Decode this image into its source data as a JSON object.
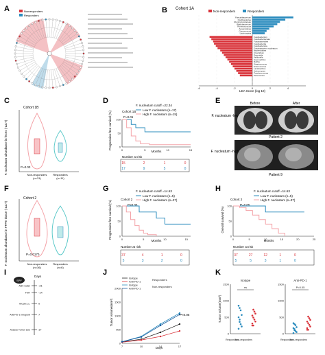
{
  "colors": {
    "red": "#d9333a",
    "blue": "#2b8cbe",
    "pink": "#f4a3a8",
    "teal": "#5cc9c9",
    "dark": "#222222",
    "grey": "#9a9a9a"
  },
  "panelA": {
    "letter": "A",
    "legend": [
      "Nonresponders",
      "Responders"
    ]
  },
  "panelB": {
    "letter": "B",
    "title": "Cohort 1A",
    "legend": [
      "Non-responders",
      "Responders"
    ],
    "xlabel": "LDA Score (log 10)",
    "ticks": [
      "-6",
      "-4",
      "-2",
      "0",
      "2",
      "4"
    ],
    "positive": [
      "Faecalibacterium",
      "Oscillospirales",
      "Ruminococcaceae",
      "Bifidobacterium",
      "Ruminococcus",
      "Anaerostipes",
      "Coprococcus",
      "Lachnospira"
    ],
    "positive_values": [
      4.6,
      3.7,
      3.1,
      2.8,
      2.4,
      1.9,
      1.6,
      1.4
    ],
    "negative": [
      "Fusobacterium",
      "Fusobacteriaceae",
      "Fusobacteriales",
      "Fusobacteriia",
      "Fusobacteriota",
      "Fusobacterium nucleatum",
      "Bacteroidales",
      "Clostridium",
      "Prevotella",
      "Veillonella",
      "Haemophilus",
      "Rothia",
      "Streptococcus",
      "Enterococcus",
      "Lactobacillus",
      "Actinomyces",
      "Porphyromonas",
      "Parvimonas"
    ],
    "negative_values": [
      -4.8,
      -4.6,
      -4.4,
      -4.3,
      -4.1,
      -3.9,
      -3.6,
      -3.4,
      -3.2,
      -3.0,
      -2.8,
      -2.6,
      -2.4,
      -2.2,
      -2.0,
      -1.8,
      -1.6,
      -1.4
    ]
  },
  "panelC": {
    "letter": "C",
    "cohort": "Cohort 1B",
    "ylabel": "F. nucleatum abundance in feces (-ΔCT)",
    "pvalue": "P=0.03",
    "groups": [
      "Non-responders",
      "Responders"
    ],
    "ns": [
      "(n=31)",
      "(n=11)"
    ]
  },
  "panelD": {
    "letter": "D",
    "cohort": "Cohort 1B",
    "cutoff": "F. nucleatum cutoff =22.34",
    "legend": [
      "Low F. nucleatum (n=17)",
      "High F. nucleatum (n=15)"
    ],
    "pvalue": "P=0.01",
    "ylabel": "Progression-free survival (%)",
    "xlabel": "Months",
    "xticks": [
      "0",
      "5",
      "10",
      "15"
    ],
    "risk_title": "Number at risk",
    "risk_rows": [
      [
        "15",
        "2",
        "1",
        "0"
      ],
      [
        "17",
        "9",
        "5",
        "0"
      ]
    ]
  },
  "panelE": {
    "letter": "E",
    "before": "Before",
    "after": "After",
    "low_label": "F. nucleatum -low",
    "high_label": "F. nucleatum -high",
    "patient1": "Patient 2",
    "patient2": "Patient 9"
  },
  "panelF": {
    "letter": "F",
    "cohort": "Cohort 2",
    "ylabel": "F. nucleatum abundance in FFPE tissue (-ΔCT)",
    "pvalue": "P=0.0170",
    "groups": [
      "Non-responders",
      "Responders"
    ],
    "ns": [
      "(n=36)",
      "(n=6)"
    ]
  },
  "panelG": {
    "letter": "G",
    "cohort": "Cohort 2",
    "cutoff": "F. nucleatum cutoff =14.63",
    "legend": [
      "Low F. nucleatum (n=5)",
      "High F. nucleatum (n=37)"
    ],
    "pvalue": "P<0.05",
    "ylabel": "Progression-free survival (%)",
    "xlabel": "Months",
    "xticks": [
      "0",
      "5",
      "10",
      "15"
    ],
    "risk_title": "Number at risk",
    "risk_rows": [
      [
        "37",
        "4",
        "1",
        "0"
      ],
      [
        "5",
        "3",
        "2",
        "0"
      ]
    ]
  },
  "panelH": {
    "letter": "H",
    "cohort": "Cohort 2",
    "cutoff": "F. nucleatum cutoff =14.63",
    "legend": [
      "Low F. nucleatum (n=5)",
      "High F. nucleatum (n=37)"
    ],
    "pvalue": "P=0.05",
    "ylabel": "Overall survival (%)",
    "xlabel": "Months",
    "xticks": [
      "0",
      "5",
      "10",
      "15",
      "20",
      "25"
    ],
    "risk_title": "Number at risk",
    "risk_rows": [
      [
        "37",
        "27",
        "12",
        "1",
        "0"
      ],
      [
        "5",
        "5",
        "3",
        "1",
        "0"
      ]
    ]
  },
  "panelI": {
    "letter": "I",
    "mouse": "SPF",
    "days_label": "Days",
    "steps": [
      "ABX water",
      "FMT",
      "MC38 s.c.",
      "Anti-PD-1 intraperitoneal injection (100mg) twice/week",
      "Assess Tumor size"
    ],
    "days": [
      "-21",
      "-14",
      "0",
      "7",
      "17"
    ]
  },
  "panelJ": {
    "letter": "J",
    "legend": [
      "Isotype",
      "Anti-PD-1",
      "Isotype",
      "Anti-PD-1"
    ],
    "group_labels": [
      "Responders",
      "Non-responders"
    ],
    "ylabel": "Tumor volume(mm³)",
    "xlabel": "Days",
    "xticks": [
      "7",
      "10",
      "14",
      "17"
    ],
    "yticks": [
      "0",
      "500",
      "1000",
      "1500",
      "2000"
    ],
    "pvalue": "P<0.05"
  },
  "panelK": {
    "letter": "K",
    "titles": [
      "Isotype",
      "Anti-PD-1"
    ],
    "ylabel": "Tumor volume(mm³)",
    "yticks1": [
      "0",
      "500",
      "1000",
      "1500"
    ],
    "yticks2": [
      "0",
      "500",
      "1000",
      "1500"
    ],
    "sig": [
      "ns",
      "P<0.05"
    ],
    "groups": [
      "Responders",
      "Non-responders"
    ]
  },
  "chart_data": [
    {
      "type": "bar",
      "panel": "B",
      "title": "Cohort 1A",
      "xlabel": "LDA Score (log 10)",
      "series": [
        {
          "name": "Responders",
          "values": [
            4.6,
            3.7,
            3.1,
            2.8,
            2.4,
            1.9,
            1.6,
            1.4
          ]
        },
        {
          "name": "Non-responders",
          "values": [
            -4.8,
            -4.6,
            -4.4,
            -4.3,
            -4.1,
            -3.9,
            -3.6,
            -3.4,
            -3.2,
            -3.0,
            -2.8,
            -2.6,
            -2.4,
            -2.2,
            -2.0,
            -1.8,
            -1.6,
            -1.4
          ]
        }
      ]
    },
    {
      "type": "line",
      "panel": "D",
      "series": [
        {
          "name": "Low F. nucleatum (n=17)",
          "x": [
            0,
            2,
            3,
            5,
            8,
            10,
            15
          ],
          "y": [
            100,
            82,
            70,
            55,
            55,
            55,
            55
          ]
        },
        {
          "name": "High F. nucleatum (n=15)",
          "x": [
            0,
            1,
            2,
            3,
            4,
            6,
            15
          ],
          "y": [
            100,
            70,
            40,
            22,
            12,
            8,
            8
          ]
        }
      ]
    },
    {
      "type": "line",
      "panel": "G",
      "series": [
        {
          "name": "Low F. nucleatum (n=5)",
          "x": [
            0,
            4,
            6,
            8,
            10,
            16
          ],
          "y": [
            100,
            80,
            80,
            60,
            40,
            40
          ]
        },
        {
          "name": "High F. nucleatum (n=37)",
          "x": [
            0,
            1,
            2,
            3,
            4,
            5,
            6,
            8
          ],
          "y": [
            100,
            80,
            55,
            35,
            20,
            10,
            5,
            0
          ]
        }
      ]
    },
    {
      "type": "line",
      "panel": "H",
      "series": [
        {
          "name": "Low F. nucleatum (n=5)",
          "x": [
            0,
            8,
            10,
            22
          ],
          "y": [
            100,
            100,
            80,
            80
          ]
        },
        {
          "name": "High F. nucleatum (n=37)",
          "x": [
            0,
            2,
            4,
            6,
            8,
            10,
            12,
            14,
            16
          ],
          "y": [
            100,
            95,
            85,
            70,
            55,
            40,
            25,
            10,
            0
          ]
        }
      ]
    },
    {
      "type": "line",
      "panel": "J",
      "x": [
        7,
        10,
        14,
        17
      ],
      "series": [
        {
          "name": "Isotype",
          "values": [
            50,
            150,
            400,
            700
          ]
        },
        {
          "name": "Anti-PD-1",
          "values": [
            40,
            120,
            250,
            450
          ]
        },
        {
          "name": "Isotype",
          "values": [
            60,
            250,
            700,
            1100
          ]
        },
        {
          "name": "Anti-PD-1",
          "values": [
            55,
            230,
            650,
            1050
          ]
        }
      ]
    }
  ]
}
